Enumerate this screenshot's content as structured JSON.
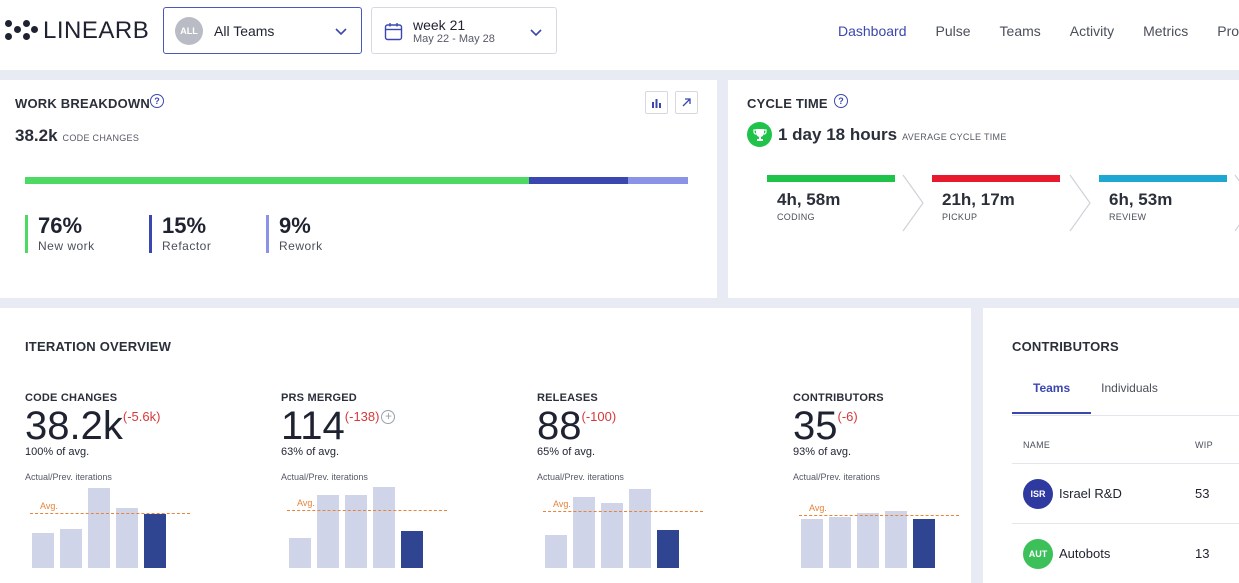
{
  "header": {
    "logo_text": "LINEARB",
    "team_select": {
      "badge": "ALL",
      "label": "All Teams"
    },
    "week_select": {
      "title": "week 21",
      "range": "May 22 - May 28"
    },
    "nav": [
      {
        "label": "Dashboard",
        "active": true
      },
      {
        "label": "Pulse"
      },
      {
        "label": "Teams"
      },
      {
        "label": "Activity"
      },
      {
        "label": "Metrics"
      },
      {
        "label": "Pro"
      }
    ]
  },
  "work_breakdown": {
    "title": "WORK BREAKDOWN",
    "total": "38.2k",
    "total_caption": "CODE CHANGES",
    "segments": [
      {
        "pct": "76%",
        "label": "New work",
        "share": 76,
        "color": "#4cd964"
      },
      {
        "pct": "15%",
        "label": "Refactor",
        "share": 15,
        "color": "#3b47b0"
      },
      {
        "pct": "9%",
        "label": "Rework",
        "share": 9,
        "color": "#8b93e6"
      }
    ]
  },
  "cycle_time": {
    "title": "CYCLE TIME",
    "value": "1 day 18 hours",
    "caption": "AVERAGE CYCLE TIME",
    "stages": [
      {
        "value": "4h, 58m",
        "label": "CODING",
        "color": "#1fc34a"
      },
      {
        "value": "21h, 17m",
        "label": "PICKUP",
        "color": "#e8192c"
      },
      {
        "value": "6h, 53m",
        "label": "REVIEW",
        "color": "#1ea7d0"
      }
    ]
  },
  "iteration": {
    "title": "ITERATION OVERVIEW",
    "avg_label": "Avg.",
    "caption": "Actual/Prev. iterations",
    "metrics": [
      {
        "label": "CODE CHANGES",
        "value": "38.2k",
        "delta": "(-5.6k)",
        "avg": "100% of avg.",
        "bars": [
          34,
          38,
          78,
          59,
          53
        ],
        "avg_level": 54
      },
      {
        "label": "PRS MERGED",
        "value": "114",
        "delta": "(-138)",
        "avg": "63% of avg.",
        "bars": [
          29,
          71,
          71,
          79,
          36
        ],
        "avg_level": 57,
        "plus": true
      },
      {
        "label": "RELEASES",
        "value": "88",
        "delta": "(-100)",
        "avg": "65% of avg.",
        "bars": [
          32,
          69,
          63,
          77,
          37
        ],
        "avg_level": 56
      },
      {
        "label": "CONTRIBUTORS",
        "value": "35",
        "delta": "(-6)",
        "avg": "93% of avg.",
        "bars": [
          48,
          50,
          54,
          56,
          48
        ],
        "avg_level": 52
      }
    ]
  },
  "contributors": {
    "title": "CONTRIBUTORS",
    "tabs": [
      "Teams",
      "Individuals"
    ],
    "col_name": "NAME",
    "col_wip": "WIP",
    "rows": [
      {
        "initials": "ISR",
        "name": "Israel R&D",
        "wip": "53",
        "color": "#2f3aa0"
      },
      {
        "initials": "AUT",
        "name": "Autobots",
        "wip": "13",
        "color": "#3cc05a"
      }
    ]
  }
}
